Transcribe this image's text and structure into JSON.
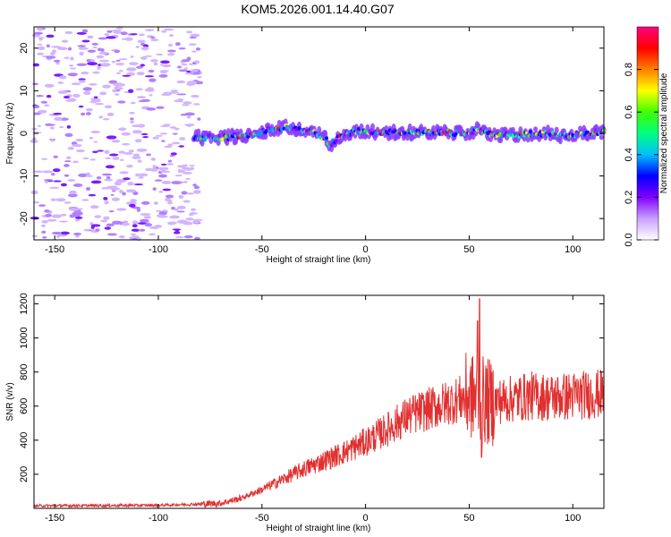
{
  "title": "KOM5.2026.001.14.40.G07",
  "chart_data": [
    {
      "type": "heatmap",
      "xlabel": "Height of straight line (km)",
      "ylabel": "Frequency (Hz)",
      "xlim": [
        -160,
        115
      ],
      "ylim": [
        -25,
        25
      ],
      "xticks": [
        -150,
        -100,
        -50,
        0,
        50,
        100
      ],
      "yticks": [
        -20,
        -10,
        0,
        10,
        20
      ],
      "colorbar": {
        "label": "Normalized spectral amplitude",
        "range": [
          0,
          1
        ],
        "ticks": [
          "0.0",
          "0.2",
          "0.4",
          "0.6",
          "0.8"
        ],
        "colormap": [
          "#ffffff",
          "#c9a0ff",
          "#8000ff",
          "#0000ff",
          "#00c0ff",
          "#00ff80",
          "#40ff00",
          "#ffff00",
          "#ff8000",
          "#ff0000",
          "#ff0080"
        ]
      },
      "signal_track": {
        "x": [
          -83,
          -70,
          -55,
          -45,
          -38,
          -30,
          -25,
          -20,
          -17,
          -13,
          -8,
          -3,
          0,
          10,
          20,
          30,
          40,
          48,
          52,
          55,
          58,
          65,
          75,
          85,
          95,
          105,
          115
        ],
        "freq": [
          -1,
          -1,
          -0.5,
          1,
          1.5,
          0.5,
          0.3,
          -1,
          -2.5,
          -1,
          0,
          0.5,
          0.5,
          0.2,
          0.2,
          0.2,
          0.2,
          0,
          0.5,
          1,
          0,
          -0.5,
          -0.3,
          0,
          -0.5,
          0,
          0.3
        ]
      },
      "noise_region_xlim": [
        -160,
        -80
      ]
    },
    {
      "type": "line",
      "xlabel": "Height of straight line (km)",
      "ylabel": "SNR (v/v)",
      "xlim": [
        -160,
        115
      ],
      "ylim": [
        0,
        1250
      ],
      "xticks": [
        -150,
        -100,
        -50,
        0,
        50,
        100
      ],
      "yticks": [
        200,
        400,
        600,
        800,
        1000,
        1200
      ],
      "color": "#e03030",
      "envelope": {
        "x": [
          -160,
          -100,
          -80,
          -70,
          -60,
          -50,
          -40,
          -30,
          -20,
          -10,
          0,
          10,
          20,
          30,
          40,
          50,
          55,
          60,
          70,
          80,
          90,
          100,
          110,
          115
        ],
        "y": [
          15,
          18,
          25,
          30,
          60,
          110,
          170,
          230,
          280,
          330,
          390,
          460,
          540,
          580,
          620,
          660,
          640,
          620,
          640,
          660,
          650,
          660,
          670,
          670
        ]
      },
      "spikes": [
        {
          "x": 55,
          "y": 1230
        },
        {
          "x": 54,
          "y": 1100
        },
        {
          "x": 56,
          "y": 300
        }
      ]
    }
  ]
}
